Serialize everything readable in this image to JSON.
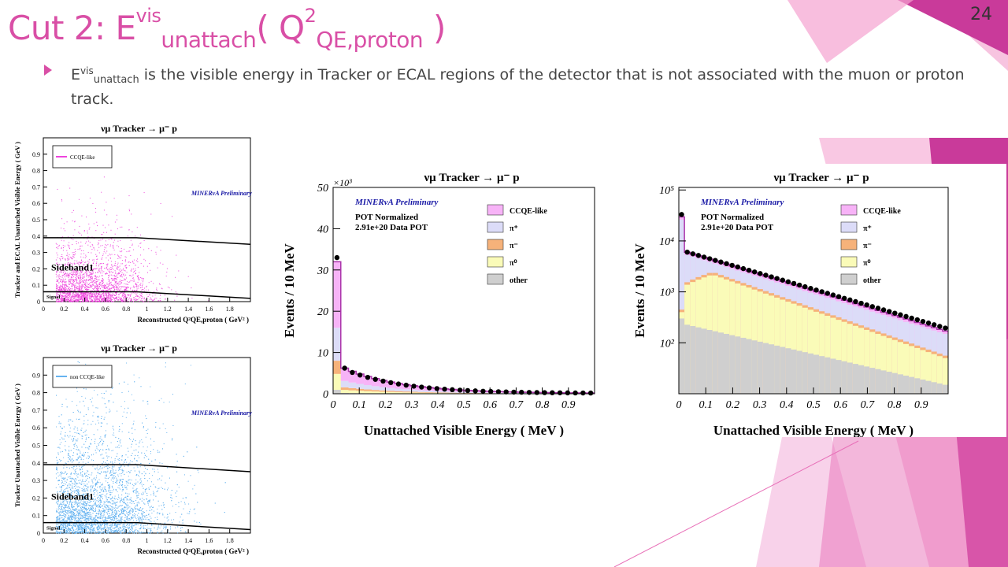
{
  "slide": {
    "title_prefix": "Cut 2: E",
    "title_sup": "vis",
    "title_sub": "unattach",
    "title_mid": "( Q",
    "title_sup2": "2",
    "title_sub2": "QE,proton",
    "title_end": " )",
    "number": "24",
    "bullet_e": "E",
    "bullet_sup": "vis",
    "bullet_sub": "unattach",
    "bullet_rest": " is the visible energy in Tracker or ECAL regions of the detector that is not associated with the muon or proton track.",
    "accent_color": "#d94fa6"
  },
  "plots": {
    "scatter_top": {
      "title": "νμ Tracker → μ⁻ p",
      "ylabel": "Tracker and ECAL Unattached Visible Energy ( GeV )",
      "xlabel": "Reconstructed Q²QE,proton ( GeV² )",
      "legend": "CCQE-like",
      "prelim": "MINERνA Preliminary",
      "region1": "Sideband1",
      "region2": "Signal",
      "color": "#ee44dd"
    },
    "scatter_bottom": {
      "title": "νμ Tracker → μ⁻ p",
      "ylabel": "Tracker Unattached Visible Energy ( GeV )",
      "xlabel": "Reconstructed Q²QE,proton ( GeV² )",
      "legend": "non CCQE-like",
      "prelim": "MINERνA Preliminary",
      "region1": "Sideband1",
      "region2": "Signal",
      "color": "#66b3f0"
    },
    "hist_linear": {
      "title": "νμ Tracker → μ⁻ p",
      "ylabel": "Events / 10 MeV",
      "xlabel": "Unattached Visible Energy ( MeV )",
      "scale_label": "×10³",
      "prelim": "MINERνA Preliminary",
      "pot1": "POT Normalized",
      "pot2": "2.91e+20 Data POT"
    },
    "hist_log": {
      "title": "νμ Tracker → μ⁻ p",
      "ylabel": "Events / 10 MeV",
      "xlabel": "Unattached Visible Energy ( MeV )",
      "prelim": "MINERνA Preliminary",
      "pot1": "POT Normalized",
      "pot2": "2.91e+20 Data POT"
    }
  },
  "chart_data": [
    {
      "type": "scatter",
      "title": "νμ Tracker → μ⁻ p",
      "xlabel": "Reconstructed Q²QE,proton ( GeV² )",
      "ylabel": "Tracker and ECAL Unattached Visible Energy ( GeV )",
      "xlim": [
        0,
        2.0
      ],
      "ylim": [
        0,
        1.0
      ],
      "xticks": [
        "0",
        "0.2",
        "0.4",
        "0.6",
        "0.8",
        "1",
        "1.2",
        "1.4",
        "1.6",
        "1.8"
      ],
      "yticks": [
        "0",
        "0.1",
        "0.2",
        "0.3",
        "0.4",
        "0.5",
        "0.6",
        "0.7",
        "0.8",
        "0.9"
      ],
      "legend": [
        "CCQE-like"
      ],
      "cut_upper": {
        "x": [
          0,
          0.9,
          2.0
        ],
        "y": [
          0.39,
          0.39,
          0.35
        ]
      },
      "cut_lower": {
        "x": [
          0,
          0.9,
          2.0
        ],
        "y": [
          0.06,
          0.06,
          0.02
        ]
      },
      "density_model": {
        "x_center": 0.45,
        "x_spread": 0.3,
        "y_decay": 0.12,
        "n_points": 2500
      }
    },
    {
      "type": "scatter",
      "title": "νμ Tracker → μ⁻ p",
      "xlabel": "Reconstructed Q²QE,proton ( GeV² )",
      "ylabel": "Tracker Unattached Visible Energy ( GeV )",
      "xlim": [
        0,
        2.0
      ],
      "ylim": [
        0,
        1.0
      ],
      "xticks": [
        "0",
        "0.2",
        "0.4",
        "0.6",
        "0.8",
        "1",
        "1.2",
        "1.4",
        "1.6",
        "1.8"
      ],
      "yticks": [
        "0",
        "0.1",
        "0.2",
        "0.3",
        "0.4",
        "0.5",
        "0.6",
        "0.7",
        "0.8",
        "0.9"
      ],
      "legend": [
        "non CCQE-like"
      ],
      "cut_upper": {
        "x": [
          0,
          0.9,
          2.0
        ],
        "y": [
          0.39,
          0.39,
          0.35
        ]
      },
      "cut_lower": {
        "x": [
          0,
          0.9,
          2.0
        ],
        "y": [
          0.06,
          0.06,
          0.02
        ]
      },
      "density_model": {
        "x_center": 0.5,
        "x_spread": 0.35,
        "y_decay": 0.22,
        "n_points": 5000
      }
    },
    {
      "type": "bar",
      "title": "νμ Tracker → μ⁻ p",
      "xlabel": "Unattached Visible Energy ( MeV )",
      "ylabel": "Events / 10 MeV",
      "scale": "×10³",
      "xlim": [
        0,
        1.0
      ],
      "ylim": [
        0,
        50
      ],
      "xticks": [
        "0",
        "0.1",
        "0.2",
        "0.3",
        "0.4",
        "0.5",
        "0.6",
        "0.7",
        "0.8",
        "0.9"
      ],
      "yticks": [
        "0",
        "10",
        "20",
        "30",
        "40",
        "50"
      ],
      "legend": [
        "CCQE-like",
        "π⁺",
        "π⁻",
        "π⁰",
        "other"
      ],
      "series_colors": {
        "CCQE-like": "#f7b3f7",
        "π⁺": "#dcdcf8",
        "π⁻": "#f6b27a",
        "π⁰": "#fafbb8",
        "other": "#cfcfcf"
      },
      "first_bin": 32,
      "data_points_first": 33,
      "data_at_0p03": 6.2
    },
    {
      "type": "bar",
      "title": "νμ Tracker → μ⁻ p",
      "xlabel": "Unattached Visible Energy ( MeV )",
      "ylabel": "Events / 10 MeV",
      "scale": "log",
      "xlim": [
        0,
        1.0
      ],
      "yticks": [
        "10²",
        "10³",
        "10⁴",
        "10⁵"
      ],
      "xticks": [
        "0",
        "0.1",
        "0.2",
        "0.3",
        "0.4",
        "0.5",
        "0.6",
        "0.7",
        "0.8",
        "0.9"
      ],
      "legend": [
        "CCQE-like",
        "π⁺",
        "π⁻",
        "π⁰",
        "other"
      ],
      "series_colors": {
        "CCQE-like": "#f7b3f7",
        "π⁺": "#dcdcf8",
        "π⁻": "#f6b27a",
        "π⁰": "#fafbb8",
        "other": "#cfcfcf"
      },
      "log_model": {
        "data_start": 33000,
        "data_second": 6000,
        "data_end": 170,
        "pi0_peak": 2100,
        "pi0_end": 50,
        "other_start": 300,
        "other_end": 15
      }
    }
  ]
}
